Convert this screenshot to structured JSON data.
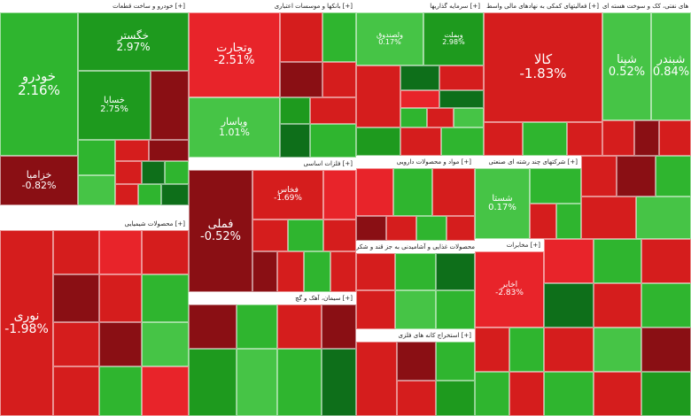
{
  "colors": {
    "strong_green": "#1e9a1e",
    "green": "#2fb52f",
    "light_green": "#46c446",
    "dark_green": "#0e6f1a",
    "red": "#d51d1d",
    "bright_red": "#e8242a",
    "dark_red": "#8a0f14",
    "deep_red": "#5e0a0e"
  },
  "chart_data": {
    "type": "heatmap",
    "title": "",
    "sectors": [
      {
        "name": "خودرو و ساخت قطعات [+]",
        "tiles": [
          {
            "name": "خودرو",
            "change": "2.16%",
            "change_value": 2.16
          },
          {
            "name": "خگستر",
            "change": "2.97%",
            "change_value": 2.97
          },
          {
            "name": "خساپا",
            "change": "2.75%",
            "change_value": 2.75
          },
          {
            "name": "خزامیا",
            "change": "-0.82%",
            "change_value": -0.82
          }
        ]
      },
      {
        "name": "بانکها و موسسات اعتباری [+]",
        "tiles": [
          {
            "name": "وتجارت",
            "change": "-2.51%",
            "change_value": -2.51
          },
          {
            "name": "وپاسار",
            "change": "1.01%",
            "change_value": 1.01
          }
        ]
      },
      {
        "name": "سرمایه گذاریها [+]",
        "tiles": [
          {
            "name": "ولصندوق",
            "change": "0.17%",
            "change_value": 0.17
          },
          {
            "name": "وبملت",
            "change": "2.98%",
            "change_value": 2.98
          }
        ]
      },
      {
        "name": "فعالیتهای کمکی به نهادهای مالی واسط [+]",
        "tiles": [
          {
            "name": "کالا",
            "change": "-1.83%",
            "change_value": -1.83
          }
        ]
      },
      {
        "name": "فراورده های نفتی، کک و سوخت هسته ای [+]",
        "tiles": [
          {
            "name": "شپنا",
            "change": "0.52%",
            "change_value": 0.52
          },
          {
            "name": "شبندر",
            "change": "0.84%",
            "change_value": 0.84
          }
        ]
      },
      {
        "name": "فلزات اساسی [+]",
        "tiles": [
          {
            "name": "فملی",
            "change": "-0.52%",
            "change_value": -0.52
          },
          {
            "name": "فخاس",
            "change": "-1.69%",
            "change_value": -1.69
          }
        ]
      },
      {
        "name": "مواد و محصولات دارویی [+]",
        "tiles": []
      },
      {
        "name": "شرکتهای چند رشته ای صنعتی [+]",
        "tiles": [
          {
            "name": "شستا",
            "change": "0.17%",
            "change_value": 0.17
          }
        ]
      },
      {
        "name": "محصولات شیمیایی [+]",
        "tiles": [
          {
            "name": "نوری",
            "change": "-1.98%",
            "change_value": -1.98
          }
        ]
      },
      {
        "name": "مخابرات [+]",
        "tiles": [
          {
            "name": "اخابر",
            "change": "-2.83%",
            "change_value": -2.83
          }
        ]
      },
      {
        "name": "سیمان، آهک و گچ [+]",
        "tiles": []
      },
      {
        "name": "محصولات غذایی و آشامیدنی به جز قند و شکر [+]",
        "tiles": []
      },
      {
        "name": "استخراج کانه های فلزی [+]",
        "tiles": []
      }
    ]
  }
}
